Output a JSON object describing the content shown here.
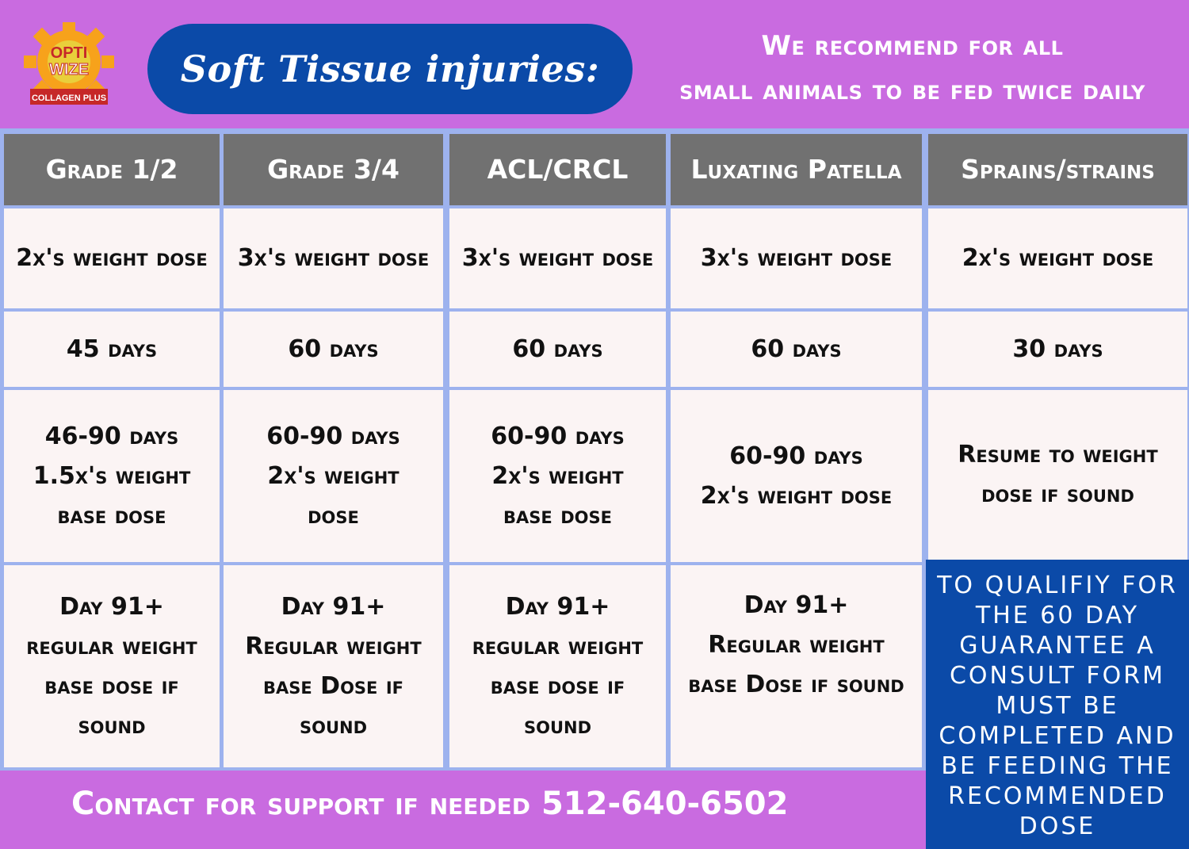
{
  "logo": {
    "line1": "OPTI",
    "line2": "WIZE",
    "tagline": "COLLAGEN PLUS"
  },
  "header": {
    "title": "Soft Tissue injuries:",
    "recommend_line1": "We recommend for all",
    "recommend_line2": "small animals to be fed twice  daily"
  },
  "table": {
    "columns": [
      "Grade 1/2",
      "Grade 3/4",
      "ACL/CRCL",
      "Luxating Patella",
      "Sprains/strains"
    ],
    "row1": [
      "2x's weight dose",
      "3x's weight dose",
      "3x's weight dose",
      "3x's weight dose",
      "2x's weight dose"
    ],
    "row2": [
      "45 days",
      "60 days",
      "60 days",
      "60 days",
      "30 days"
    ],
    "row3": [
      [
        "46-90 days",
        "1.5x's weight",
        "base dose"
      ],
      [
        "60-90 days",
        "2x's weight",
        "dose"
      ],
      [
        "60-90 days",
        "2x's weight",
        "base dose"
      ],
      [
        "60-90 days",
        "2x's weight dose"
      ],
      [
        "Resume to weight",
        "dose if sound"
      ]
    ],
    "row4": [
      [
        "Day 91+",
        "regular weight",
        "base dose if",
        "sound"
      ],
      [
        "Day 91+",
        "Regular weight",
        "base Dose if",
        "sound"
      ],
      [
        "Day 91+",
        "regular weight",
        "base dose if",
        "sound"
      ],
      [
        "Day 91+",
        "Regular weight",
        "base Dose if sound"
      ]
    ]
  },
  "qualify_text": "To qualifiy for the 60 day guarantee a consult form must be completed and be feeding the recommended dose",
  "contact": "Contact for support if needed 512-640-6502",
  "colors": {
    "background": "#c96be0",
    "header_gray": "#717171",
    "brand_blue": "#0b4aa8",
    "grid_line": "#9db2ee",
    "cell": "#fbf4f4",
    "logo_orange": "#f7a21b"
  }
}
